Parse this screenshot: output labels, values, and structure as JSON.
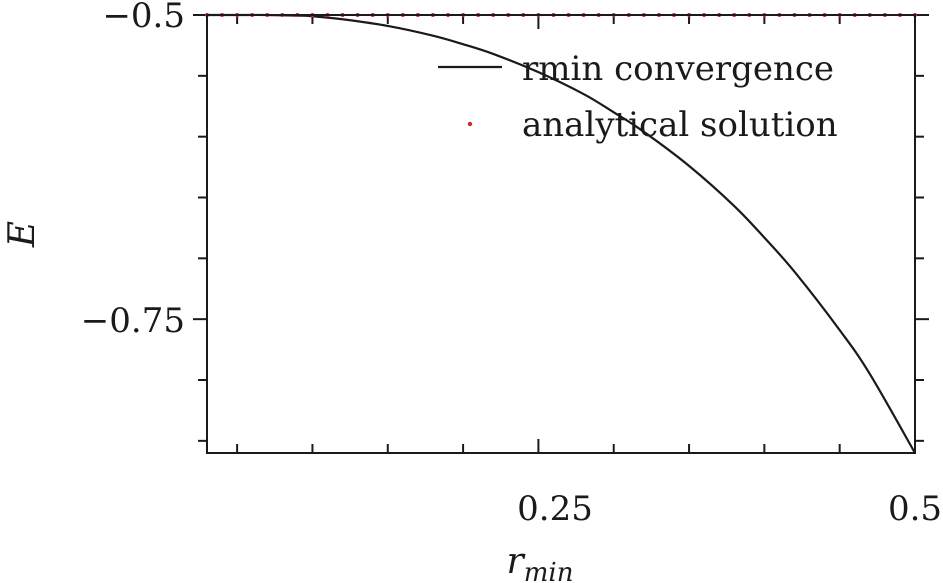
{
  "chart_data": {
    "type": "line",
    "title": "",
    "xlabel": "r",
    "xlabel_subscript": "min",
    "ylabel": "E",
    "xlim": [
      0.03,
      0.5
    ],
    "ylim": [
      -0.86,
      -0.5
    ],
    "x_ticks": [
      0.25,
      0.5
    ],
    "x_tick_labels": [
      "0.25",
      "0.5"
    ],
    "y_ticks": [
      -0.5,
      -0.75
    ],
    "y_tick_labels": [
      "−0.5",
      "−0.75"
    ],
    "grid": false,
    "legend": {
      "placement": "top-right",
      "entries": [
        "rmin convergence",
        "analytical solution"
      ]
    },
    "series": [
      {
        "name": "rmin convergence",
        "style": "solid",
        "color": "#1a1a1a",
        "x": [
          0.03,
          0.05,
          0.07,
          0.09,
          0.1,
          0.12,
          0.15,
          0.18,
          0.2,
          0.22,
          0.25,
          0.28,
          0.3,
          0.32,
          0.35,
          0.38,
          0.4,
          0.42,
          0.45,
          0.47,
          0.5
        ],
        "y": [
          -0.5,
          -0.5,
          -0.5,
          -0.5005,
          -0.501,
          -0.5035,
          -0.509,
          -0.517,
          -0.524,
          -0.532,
          -0.547,
          -0.565,
          -0.58,
          -0.596,
          -0.624,
          -0.657,
          -0.683,
          -0.711,
          -0.759,
          -0.795,
          -0.86
        ]
      },
      {
        "name": "analytical solution",
        "style": "dots",
        "color": "#d62728",
        "x": [
          0.03,
          0.04,
          0.05,
          0.06,
          0.07,
          0.08,
          0.09,
          0.1,
          0.11,
          0.12,
          0.13,
          0.14,
          0.15,
          0.16,
          0.17,
          0.18,
          0.19,
          0.2,
          0.21,
          0.22,
          0.23,
          0.24,
          0.25,
          0.26,
          0.27,
          0.28,
          0.29,
          0.3,
          0.31,
          0.32,
          0.33,
          0.34,
          0.35,
          0.36,
          0.37,
          0.38,
          0.39,
          0.4,
          0.41,
          0.42,
          0.43,
          0.44,
          0.45,
          0.46,
          0.47,
          0.48,
          0.49,
          0.5
        ],
        "y": [
          -0.5,
          -0.5,
          -0.5,
          -0.5,
          -0.5,
          -0.5,
          -0.5,
          -0.5,
          -0.5,
          -0.5,
          -0.5,
          -0.5,
          -0.5,
          -0.5,
          -0.5,
          -0.5,
          -0.5,
          -0.5,
          -0.5,
          -0.5,
          -0.5,
          -0.5,
          -0.5,
          -0.5,
          -0.5,
          -0.5,
          -0.5,
          -0.5,
          -0.5,
          -0.5,
          -0.5,
          -0.5,
          -0.5,
          -0.5,
          -0.5,
          -0.5,
          -0.5,
          -0.5,
          -0.5,
          -0.5,
          -0.5,
          -0.5,
          -0.5,
          -0.5,
          -0.5,
          -0.5,
          -0.5,
          -0.5
        ]
      }
    ]
  }
}
